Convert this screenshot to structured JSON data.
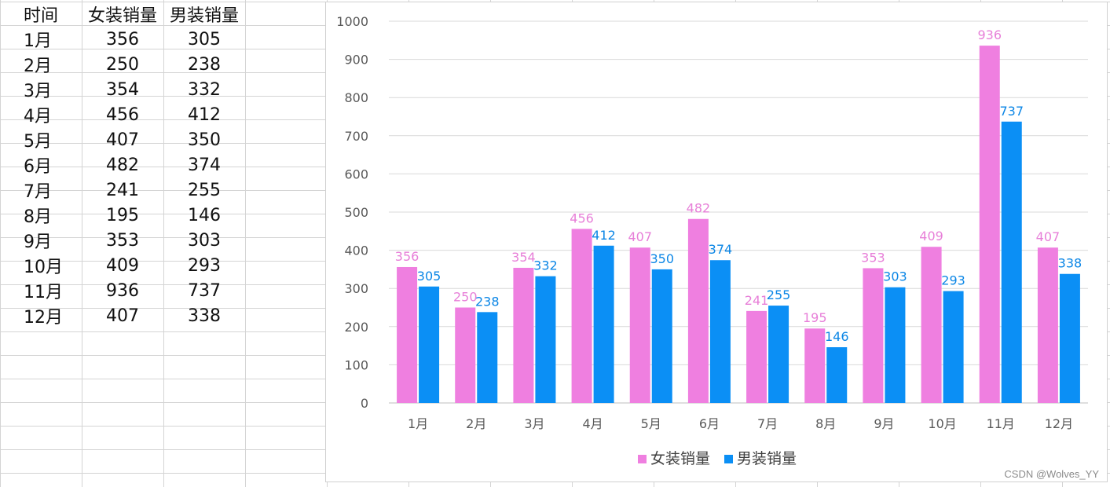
{
  "table": {
    "headers": [
      "时间",
      "女装销量",
      "男装销量"
    ],
    "rows": [
      [
        "1月",
        "356",
        "305"
      ],
      [
        "2月",
        "250",
        "238"
      ],
      [
        "3月",
        "354",
        "332"
      ],
      [
        "4月",
        "456",
        "412"
      ],
      [
        "5月",
        "407",
        "350"
      ],
      [
        "6月",
        "482",
        "374"
      ],
      [
        "7月",
        "241",
        "255"
      ],
      [
        "8月",
        "195",
        "146"
      ],
      [
        "9月",
        "353",
        "303"
      ],
      [
        "10月",
        "409",
        "293"
      ],
      [
        "11月",
        "936",
        "737"
      ],
      [
        "12月",
        "407",
        "338"
      ]
    ]
  },
  "chart_data": {
    "type": "bar",
    "categories": [
      "1月",
      "2月",
      "3月",
      "4月",
      "5月",
      "6月",
      "7月",
      "8月",
      "9月",
      "10月",
      "11月",
      "12月"
    ],
    "series": [
      {
        "name": "女装销量",
        "color": "#ef7fe0",
        "label_color": "#e77fd8",
        "values": [
          356,
          250,
          354,
          456,
          407,
          482,
          241,
          195,
          353,
          409,
          936,
          407
        ]
      },
      {
        "name": "男装销量",
        "color": "#0b8ff5",
        "label_color": "#0b86e6",
        "values": [
          305,
          238,
          332,
          412,
          350,
          374,
          255,
          146,
          303,
          293,
          737,
          338
        ]
      }
    ],
    "title": "",
    "xlabel": "",
    "ylabel": "",
    "ylim": [
      0,
      1000
    ],
    "yticks": [
      0,
      100,
      200,
      300,
      400,
      500,
      600,
      700,
      800,
      900,
      1000
    ],
    "grid": true,
    "data_labels": true,
    "legend_position": "bottom"
  },
  "watermark": "CSDN @Wolves_YY"
}
